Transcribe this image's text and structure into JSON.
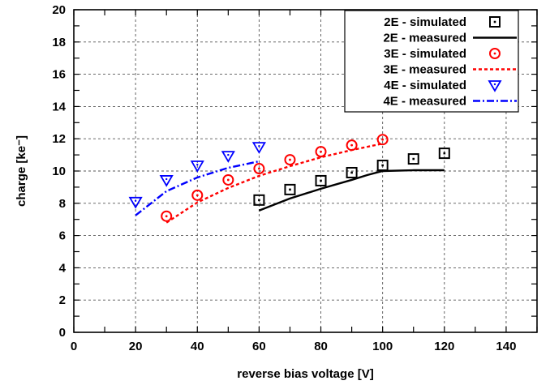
{
  "chart_data": {
    "type": "scatter",
    "xlabel": "reverse bias voltage [V]",
    "ylabel": "charge [ke⁻]",
    "xlim": [
      0,
      150
    ],
    "ylim": [
      0,
      20
    ],
    "x_ticks": [
      0,
      20,
      40,
      60,
      80,
      100,
      120,
      140
    ],
    "y_ticks": [
      0,
      2,
      4,
      6,
      8,
      10,
      12,
      14,
      16,
      18,
      20
    ],
    "grid": true,
    "legend_position": "top-right",
    "series": [
      {
        "name": "2E - simulated",
        "kind": "markers",
        "marker": "square",
        "color": "#000000",
        "x": [
          60,
          70,
          80,
          90,
          100,
          110,
          120
        ],
        "y": [
          8.2,
          8.85,
          9.4,
          9.9,
          10.35,
          10.75,
          11.1
        ]
      },
      {
        "name": "2E - measured",
        "kind": "line",
        "line_style": "solid",
        "color": "#000000",
        "x": [
          60,
          70,
          80,
          90,
          95,
          100,
          110,
          120
        ],
        "y": [
          7.55,
          8.3,
          8.9,
          9.45,
          9.75,
          10.0,
          10.05,
          10.05
        ]
      },
      {
        "name": "3E - simulated",
        "kind": "markers",
        "marker": "circle",
        "color": "#ff0000",
        "x": [
          30,
          40,
          50,
          60,
          70,
          80,
          90,
          100
        ],
        "y": [
          7.2,
          8.5,
          9.45,
          10.15,
          10.7,
          11.2,
          11.6,
          11.95
        ]
      },
      {
        "name": "3E - measured",
        "kind": "line",
        "line_style": "dotted",
        "color": "#ff0000",
        "x": [
          30,
          40,
          50,
          60,
          70,
          80,
          90,
          100
        ],
        "y": [
          6.8,
          8.05,
          8.95,
          9.7,
          10.3,
          10.85,
          11.3,
          11.7
        ]
      },
      {
        "name": "4E - simulated",
        "kind": "markers",
        "marker": "triangle-down",
        "color": "#0000ff",
        "x": [
          20,
          30,
          40,
          50,
          60
        ],
        "y": [
          8.1,
          9.45,
          10.35,
          10.95,
          11.5
        ]
      },
      {
        "name": "4E - measured",
        "kind": "line",
        "line_style": "dash-dot",
        "color": "#0000ff",
        "x": [
          20,
          30,
          40,
          50,
          60
        ],
        "y": [
          7.25,
          8.75,
          9.6,
          10.2,
          10.6
        ]
      }
    ]
  }
}
